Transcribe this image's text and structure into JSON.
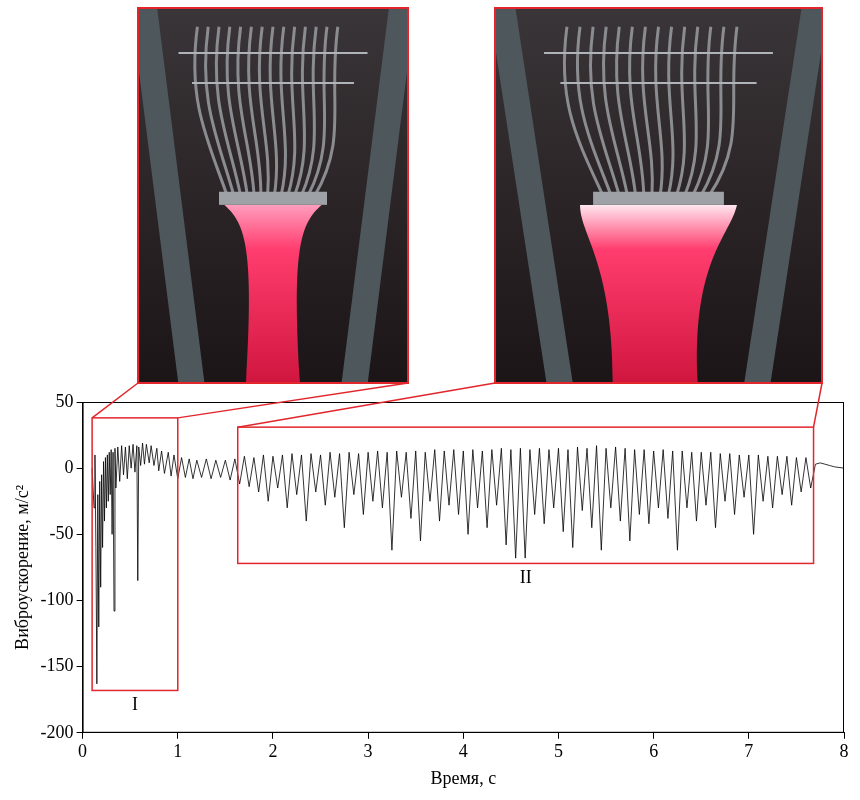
{
  "chart_data": {
    "type": "line",
    "x_label": "Время, с",
    "y_label": "Виброускорение, м/с²",
    "color": "#000000",
    "grid": false,
    "xlim": [
      0,
      8
    ],
    "xticks": [
      0,
      1,
      2,
      3,
      4,
      5,
      6,
      7,
      8
    ],
    "ylim": [
      -200,
      50
    ],
    "yticks": [
      -200,
      -150,
      -100,
      -50,
      0,
      50
    ],
    "regions": [
      {
        "label": "I",
        "x": [
          0.1,
          1.0
        ],
        "y": [
          -168,
          38
        ]
      },
      {
        "label": "II",
        "x": [
          1.63,
          7.68
        ],
        "y": [
          -72,
          31
        ]
      }
    ],
    "x": [
      0.1,
      0.12,
      0.13,
      0.14,
      0.15,
      0.16,
      0.17,
      0.18,
      0.19,
      0.2,
      0.21,
      0.22,
      0.23,
      0.24,
      0.25,
      0.26,
      0.27,
      0.28,
      0.29,
      0.3,
      0.31,
      0.32,
      0.33,
      0.34,
      0.35,
      0.37,
      0.39,
      0.41,
      0.43,
      0.45,
      0.47,
      0.49,
      0.51,
      0.53,
      0.55,
      0.57,
      0.58,
      0.59,
      0.61,
      0.63,
      0.65,
      0.67,
      0.7,
      0.72,
      0.75,
      0.78,
      0.8,
      0.83,
      0.86,
      0.9,
      0.93,
      0.96,
      1.0,
      1.04,
      1.08,
      1.12,
      1.16,
      1.2,
      1.25,
      1.3,
      1.35,
      1.4,
      1.45,
      1.5,
      1.55,
      1.6,
      1.65,
      1.7,
      1.75,
      1.8,
      1.85,
      1.9,
      1.95,
      2.0,
      2.05,
      2.1,
      2.15,
      2.2,
      2.25,
      2.3,
      2.35,
      2.4,
      2.45,
      2.5,
      2.55,
      2.6,
      2.65,
      2.7,
      2.75,
      2.8,
      2.85,
      2.9,
      2.95,
      3.0,
      3.05,
      3.1,
      3.15,
      3.2,
      3.25,
      3.3,
      3.35,
      3.4,
      3.45,
      3.5,
      3.55,
      3.6,
      3.65,
      3.7,
      3.75,
      3.8,
      3.85,
      3.9,
      3.95,
      4.0,
      4.05,
      4.1,
      4.15,
      4.2,
      4.25,
      4.3,
      4.35,
      4.4,
      4.45,
      4.5,
      4.55,
      4.6,
      4.65,
      4.7,
      4.75,
      4.8,
      4.85,
      4.9,
      4.95,
      5.0,
      5.05,
      5.1,
      5.15,
      5.2,
      5.25,
      5.3,
      5.35,
      5.4,
      5.45,
      5.5,
      5.55,
      5.6,
      5.65,
      5.7,
      5.75,
      5.8,
      5.85,
      5.9,
      5.95,
      6.0,
      6.05,
      6.1,
      6.15,
      6.2,
      6.25,
      6.3,
      6.35,
      6.4,
      6.45,
      6.5,
      6.55,
      6.6,
      6.65,
      6.7,
      6.75,
      6.8,
      6.85,
      6.9,
      6.95,
      7.0,
      7.05,
      7.1,
      7.15,
      7.2,
      7.25,
      7.3,
      7.35,
      7.4,
      7.45,
      7.5,
      7.55,
      7.6,
      7.65,
      7.7,
      7.75,
      7.8,
      7.85,
      7.9,
      8.0
    ],
    "values": [
      0,
      -30,
      10,
      -60,
      -163,
      -20,
      -120,
      -10,
      -90,
      -5,
      -60,
      5,
      -40,
      8,
      -30,
      10,
      -25,
      12,
      -20,
      14,
      -50,
      12,
      -108,
      15,
      -15,
      16,
      -10,
      17,
      -5,
      16,
      -8,
      17,
      0,
      18,
      -3,
      17,
      -85,
      16,
      2,
      19,
      3,
      18,
      4,
      17,
      2,
      15,
      -2,
      13,
      -4,
      12,
      -6,
      10,
      -8,
      8,
      -7,
      7,
      -8,
      6,
      -7,
      7,
      -8,
      6,
      -7,
      6,
      -9,
      7,
      -12,
      9,
      -14,
      8,
      -18,
      10,
      -25,
      9,
      -15,
      10,
      -30,
      11,
      -20,
      10,
      -40,
      11,
      -18,
      10,
      -28,
      12,
      -22,
      11,
      -45,
      12,
      -20,
      11,
      -35,
      12,
      -25,
      13,
      -30,
      12,
      -62,
      13,
      -22,
      12,
      -38,
      13,
      -55,
      12,
      -25,
      14,
      -40,
      13,
      -28,
      14,
      -35,
      13,
      -50,
      14,
      -30,
      13,
      -45,
      14,
      -28,
      15,
      -58,
      14,
      -68,
      15,
      -68,
      14,
      -35,
      15,
      -42,
      14,
      -30,
      15,
      -48,
      14,
      -60,
      16,
      -32,
      15,
      -45,
      17,
      -62,
      15,
      -30,
      16,
      -40,
      15,
      -55,
      14,
      -35,
      14,
      -42,
      13,
      -30,
      14,
      -38,
      13,
      -62,
      13,
      -30,
      12,
      -40,
      12,
      -28,
      12,
      -45,
      11,
      -25,
      11,
      -35,
      10,
      -22,
      10,
      -50,
      10,
      -25,
      9,
      -30,
      9,
      -20,
      9,
      -28,
      8,
      -18,
      8,
      -15,
      3,
      4,
      3,
      2,
      1,
      0
    ]
  }
}
